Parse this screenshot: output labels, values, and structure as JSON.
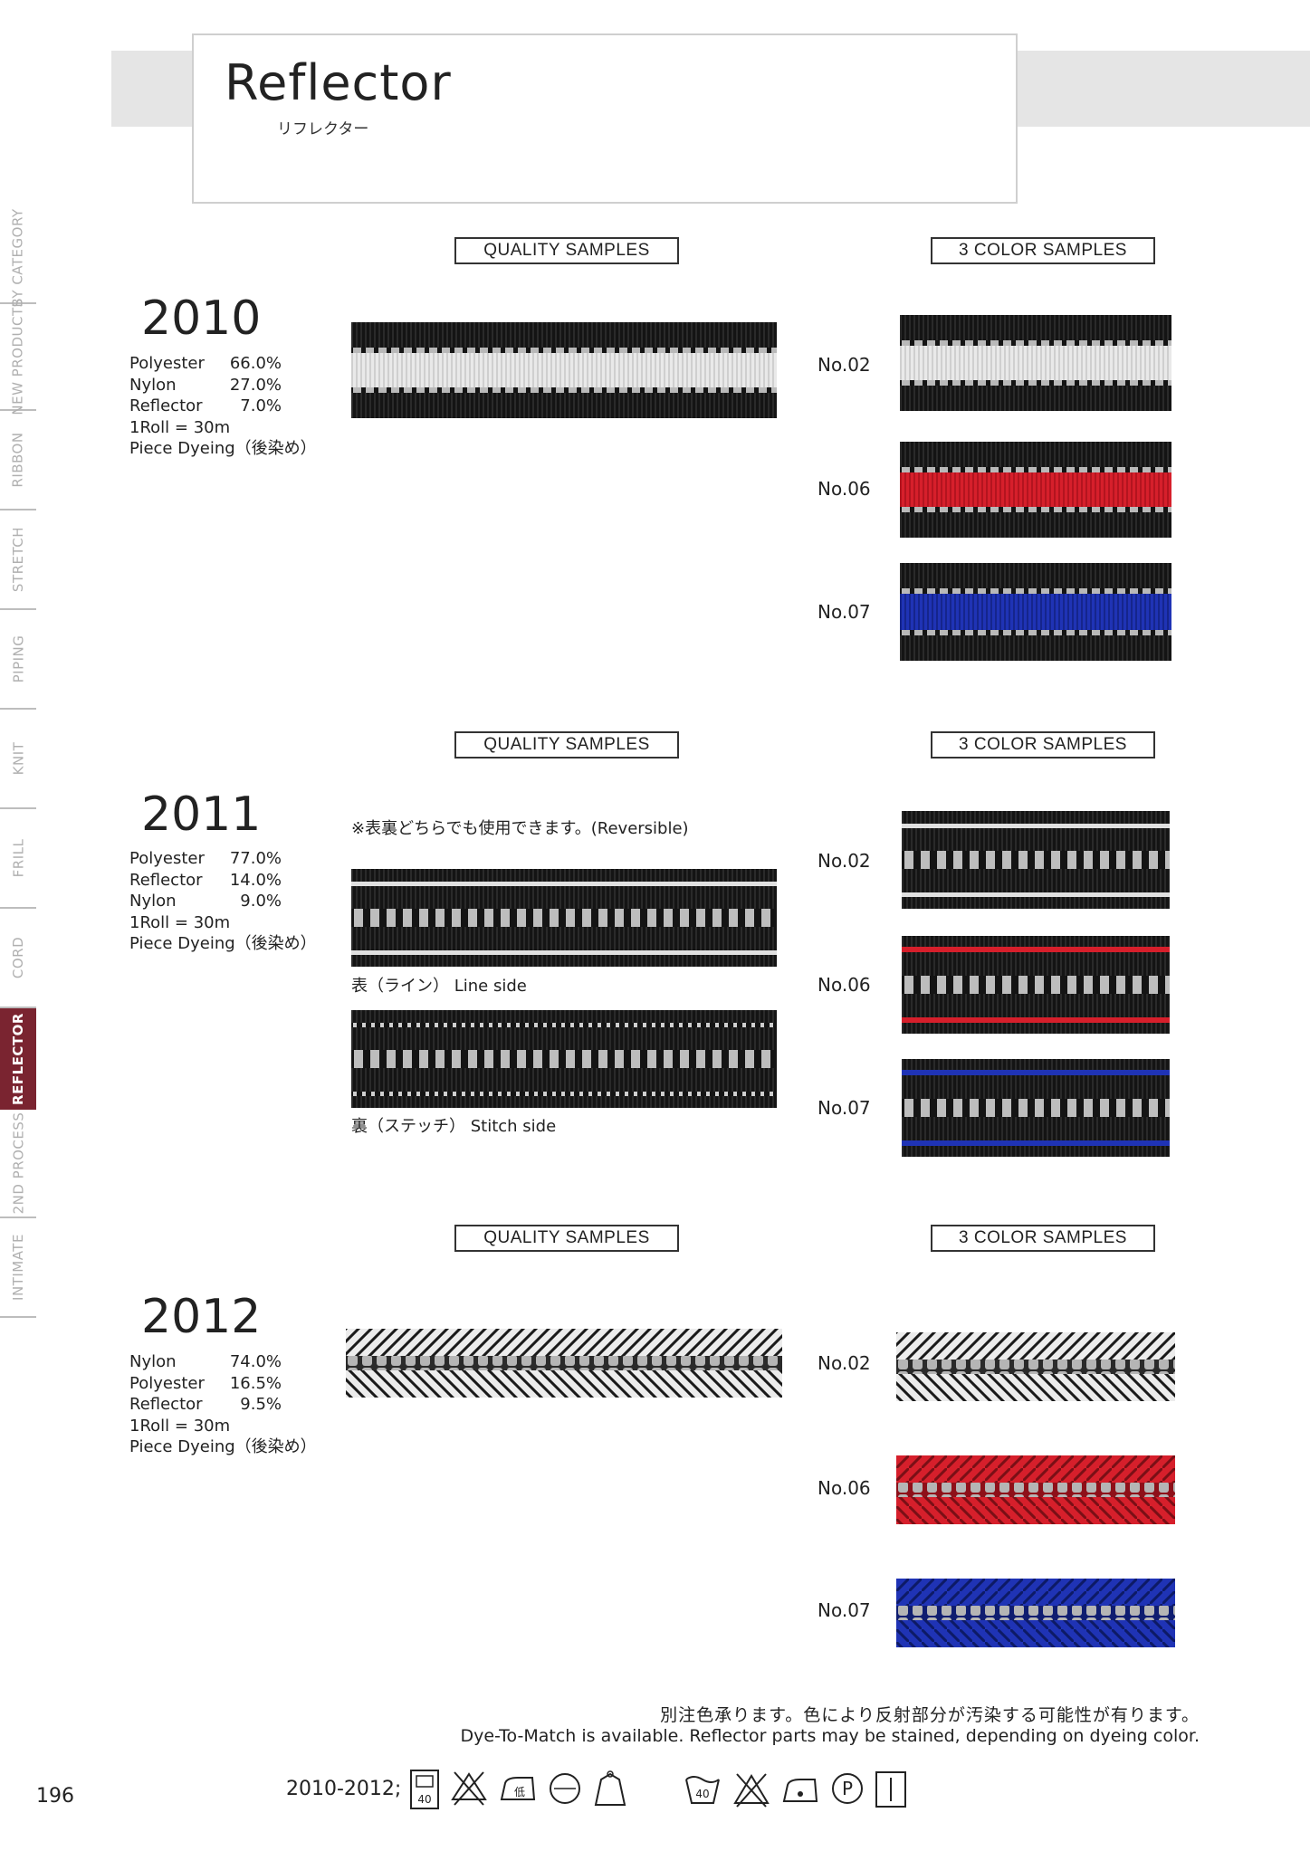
{
  "header": {
    "title": "Reflector",
    "subtitle": "リフレクター"
  },
  "sidebar": {
    "items": [
      {
        "label": "BY CATEGORY",
        "active": false
      },
      {
        "label": "NEW PRODUCTS",
        "active": false
      },
      {
        "label": "RIBBON",
        "active": false
      },
      {
        "label": "STRETCH",
        "active": false
      },
      {
        "label": "PIPING",
        "active": false
      },
      {
        "label": "KNIT",
        "active": false
      },
      {
        "label": "FRILL",
        "active": false
      },
      {
        "label": "CORD",
        "active": false
      },
      {
        "label": "REFLECTOR",
        "active": true
      },
      {
        "label": "2ND PROCESS",
        "active": false
      },
      {
        "label": "INTIMATE",
        "active": false
      }
    ]
  },
  "labels": {
    "quality": "QUALITY SAMPLES",
    "color": "3 COLOR SAMPLES"
  },
  "products": [
    {
      "code": "2010",
      "specs": [
        {
          "k": "Polyester",
          "v": "66.0%"
        },
        {
          "k": "Nylon",
          "v": "27.0%"
        },
        {
          "k": "Reflector",
          "v": "7.0%"
        }
      ],
      "roll": "1Roll = 30m",
      "dyeing": "Piece Dyeing（後染め）",
      "colors": [
        "No.02",
        "No.06",
        "No.07"
      ]
    },
    {
      "code": "2011",
      "specs": [
        {
          "k": "Polyester",
          "v": "77.0%"
        },
        {
          "k": "Reflector",
          "v": "14.0%"
        },
        {
          "k": "Nylon",
          "v": "9.0%"
        }
      ],
      "roll": "1Roll = 30m",
      "dyeing": "Piece Dyeing（後染め）",
      "note": "※表裏どちらでも使用できます。(Reversible)",
      "line_side": "表（ライン） Line side",
      "stitch_side": "裏（ステッチ） Stitch side",
      "colors": [
        "No.02",
        "No.06",
        "No.07"
      ]
    },
    {
      "code": "2012",
      "specs": [
        {
          "k": "Nylon",
          "v": "74.0%"
        },
        {
          "k": "Polyester",
          "v": "16.5%"
        },
        {
          "k": "Reflector",
          "v": "9.5%"
        }
      ],
      "roll": "1Roll = 30m",
      "dyeing": "Piece Dyeing（後染め）",
      "colors": [
        "No.02",
        "No.06",
        "No.07"
      ]
    }
  ],
  "footer": {
    "ja": "別注色承ります。色により反射部分が汚染する可能性が有ります。",
    "en": "Dye-To-Match is available. Reflector parts may be stained, depending on dyeing color.",
    "care_label": "2010-2012;",
    "page": "196",
    "care_icons": [
      "hand-wash-40-icon",
      "no-bleach-icon",
      "iron-low-icon",
      "dry-clean-icon",
      "hang-dry-icon",
      "wash-40-icon",
      "no-chlorine-icon",
      "iron-icon",
      "dry-clean-p-icon",
      "line-dry-icon"
    ],
    "care_text": {
      "hand_wash": "40",
      "wash": "40",
      "iron_low": "低",
      "dry": "P"
    }
  },
  "colors": {
    "sidebar_active": "#7a2430",
    "red": "#d61f2b",
    "blue": "#1f33b5",
    "black": "#141414",
    "reflective": "#bdbdbd"
  }
}
